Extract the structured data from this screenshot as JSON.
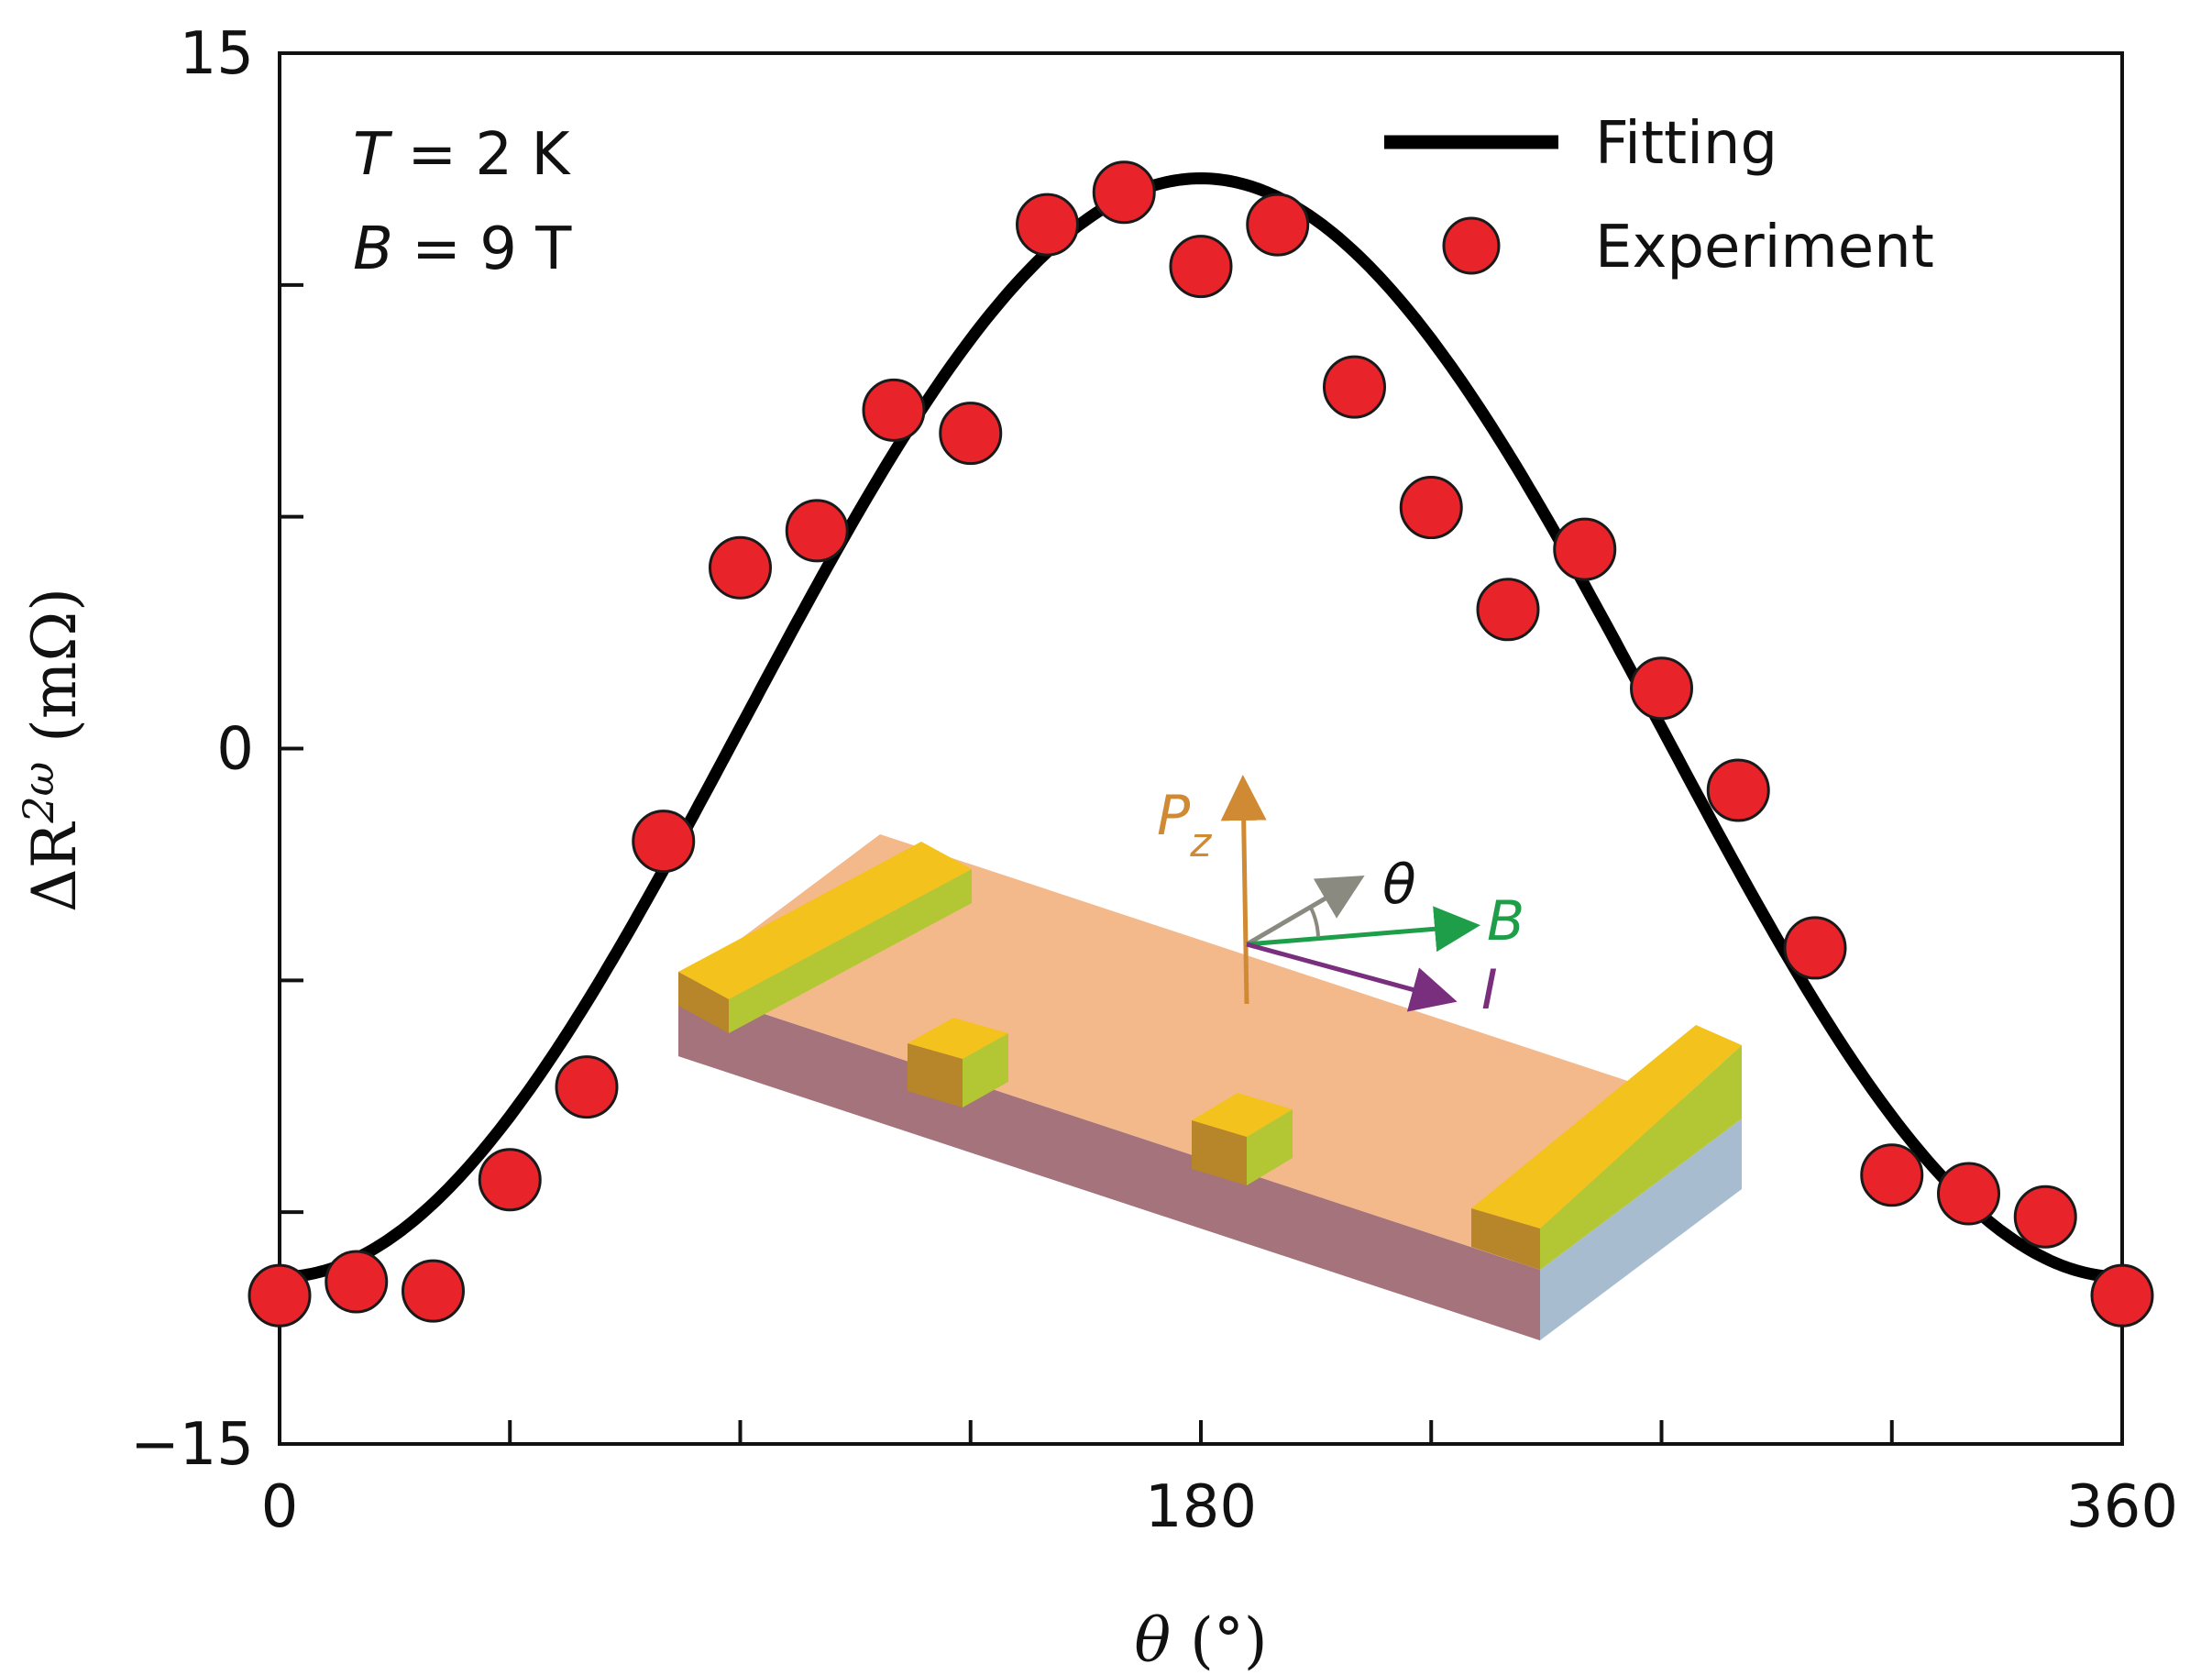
{
  "chart_data": {
    "type": "scatter",
    "xlabel": {
      "symbol": "θ",
      "unit": "(°)"
    },
    "ylabel": {
      "prefix": "ΔR",
      "superscript": "2ω",
      "unit": "(mΩ)"
    },
    "xlim": [
      0,
      360
    ],
    "ylim": [
      -15,
      15
    ],
    "x_ticks": [
      0,
      180,
      360
    ],
    "x_tick_labels": [
      "0",
      "180",
      "360"
    ],
    "x_minor_ticks": [
      45,
      90,
      135,
      225,
      270,
      315
    ],
    "y_ticks": [
      -15,
      0,
      15
    ],
    "y_tick_labels": [
      "−15",
      "0",
      "15"
    ],
    "y_minor_ticks": [
      -10,
      -5,
      5,
      10
    ],
    "annotations": [
      {
        "var": "T",
        "text": " = 2 K"
      },
      {
        "var": "B",
        "text": " = 9 T"
      }
    ],
    "legend": {
      "placement": "top-right",
      "entries": [
        "Fitting",
        "Experiment"
      ]
    },
    "series": [
      {
        "name": "Experiment",
        "style": "marker",
        "color": "#e8232a",
        "x": [
          0,
          15,
          30,
          45,
          60,
          75,
          90,
          105,
          120,
          135,
          150,
          165,
          180,
          195,
          210,
          225,
          240,
          255,
          270,
          285,
          300,
          315,
          330,
          345,
          360
        ],
        "y": [
          -11.8,
          -11.5,
          -11.7,
          -9.3,
          -7.3,
          -2.0,
          3.9,
          4.7,
          7.3,
          6.8,
          11.3,
          12.0,
          10.4,
          11.3,
          7.8,
          5.2,
          3.0,
          4.3,
          1.3,
          -0.9,
          -4.3,
          -9.2,
          -9.6,
          -10.1,
          -11.8
        ]
      },
      {
        "name": "Fitting",
        "style": "line",
        "color": "#000000",
        "function": "A*sin^2(theta/2)+C",
        "params": {
          "A": 23.7,
          "C": -11.4
        }
      }
    ]
  },
  "inset": {
    "labels": {
      "pz_main": "P",
      "pz_sub": "z",
      "theta": "θ",
      "b": "B",
      "i": "I"
    },
    "colors": {
      "pz": "#cf8a33",
      "theta_arrow": "#8a8a80",
      "b": "#1f9e4a",
      "i": "#7a2f7e",
      "film_top": "#f4b98a",
      "film_front": "#a4737c",
      "film_side": "#a4b8cc",
      "contact_top": "#f4c21c",
      "contact_front": "#b3c734",
      "contact_side": "#b7862a"
    }
  }
}
